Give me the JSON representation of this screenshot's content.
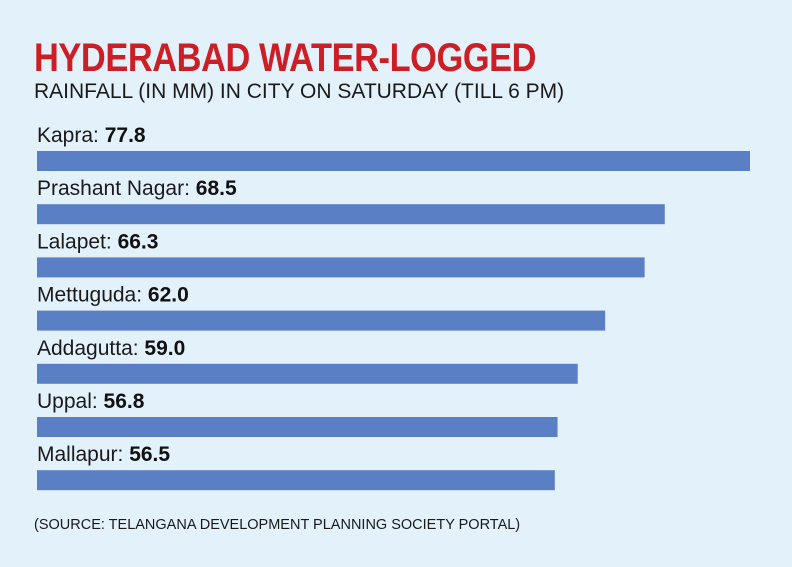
{
  "chart_data": {
    "type": "bar",
    "orientation": "horizontal",
    "title": "HYDERABAD WATER-LOGGED",
    "subtitle": "RAINFALL (IN MM) IN CITY ON SATURDAY (TILL 6 PM)",
    "categories": [
      "Kapra",
      "Prashant Nagar",
      "Lalapet",
      "Mettuguda",
      "Addagutta",
      "Uppal",
      "Mallapur"
    ],
    "values": [
      77.8,
      68.5,
      66.3,
      62.0,
      59.0,
      56.8,
      56.5
    ],
    "value_labels": [
      "77.8",
      "68.5",
      "66.3",
      "62.0",
      "59.0",
      "56.8",
      "56.5"
    ],
    "bar_color": "#5b7fc4",
    "title_color": "#cc1f25",
    "background_color": "#e3f1fb",
    "source": "(SOURCE: TELANGANA DEVELOPMENT PLANNING SOCIETY PORTAL)"
  }
}
